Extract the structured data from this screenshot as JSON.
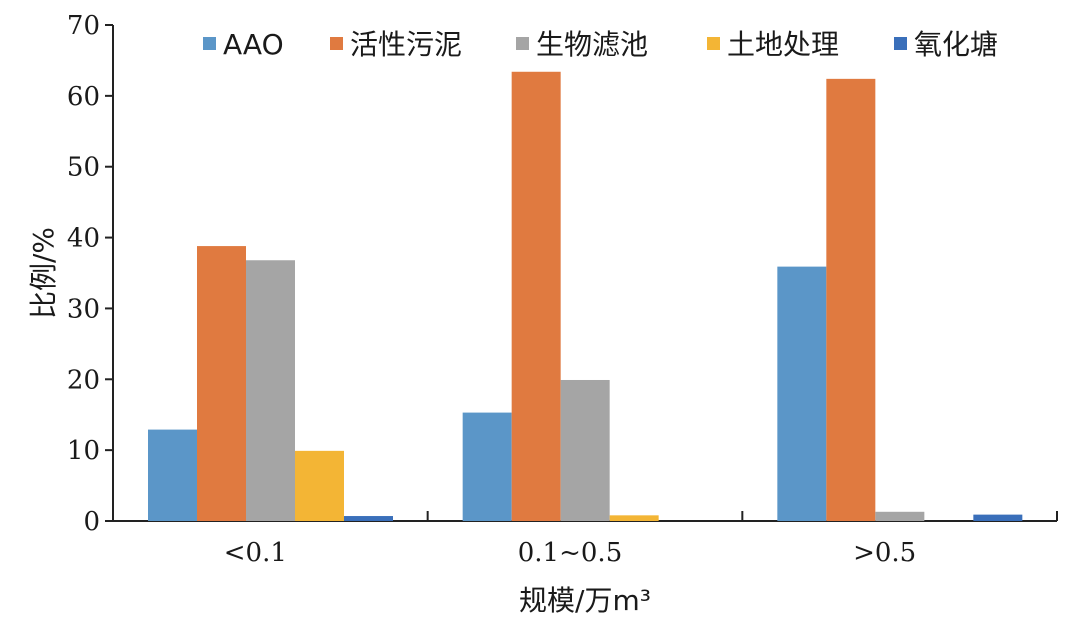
{
  "chart_data": {
    "type": "bar",
    "categories": [
      "<0.1",
      "0.1~0.5",
      ">0.5"
    ],
    "series": [
      {
        "name": "AAO",
        "color": "#5b96c8",
        "values": [
          12.9,
          15.3,
          35.9
        ]
      },
      {
        "name": "活性污泥",
        "color": "#e07a40",
        "values": [
          38.8,
          63.4,
          62.4
        ]
      },
      {
        "name": "生物滤池",
        "color": "#a5a5a5",
        "values": [
          36.8,
          19.9,
          1.3
        ]
      },
      {
        "name": "土地处理",
        "color": "#f3b535",
        "values": [
          9.9,
          0.8,
          0
        ]
      },
      {
        "name": "氧化塘",
        "color": "#3a6fba",
        "values": [
          0.7,
          0,
          0.9
        ]
      }
    ],
    "yticks": [
      "0",
      "10",
      "20",
      "30",
      "40",
      "50",
      "60",
      "70"
    ],
    "ylim": [
      0,
      70
    ],
    "xlabel": "规模/万m³",
    "ylabel": "比例/%",
    "legend_position": "top",
    "grid": false
  }
}
